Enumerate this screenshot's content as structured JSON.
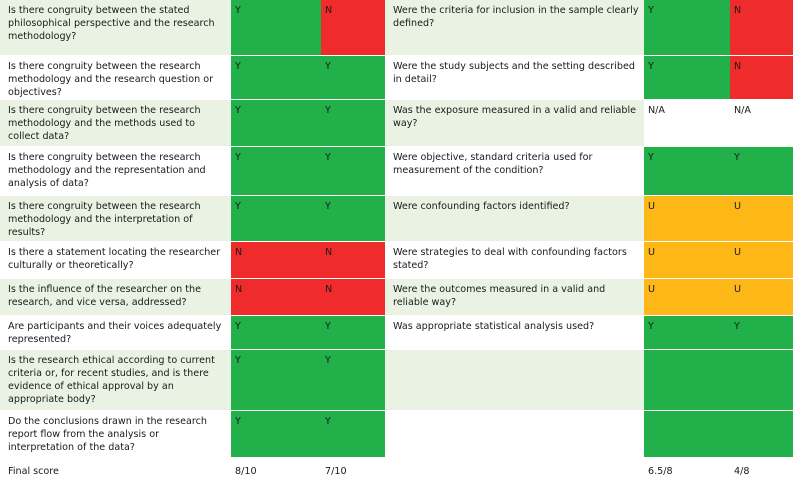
{
  "rows": [
    {
      "q1": "Is there congruity between the stated philosophical perspective and the research methodology?",
      "a": "Y",
      "b": "N",
      "q2": "Were the criteria for inclusion in the sample clearly defined?",
      "c": "Y",
      "d": "N"
    },
    {
      "q1": "Is there congruity between the research methodology and the research question or objectives?",
      "a": "Y",
      "b": "Y",
      "q2": "Were the study subjects and the setting described in detail?",
      "c": "Y",
      "d": "N"
    },
    {
      "q1": "Is there congruity between the research methodology and the methods used to collect data?",
      "a": "Y",
      "b": "Y",
      "q2": "Was the exposure measured in a valid and reliable way?",
      "c": "N/A",
      "d": "N/A"
    },
    {
      "q1": "Is there congruity between the research methodology and the representation and analysis of data?",
      "a": "Y",
      "b": "Y",
      "q2": "Were objective, standard criteria used for measurement of the condition?",
      "c": "Y",
      "d": "Y"
    },
    {
      "q1": "Is there congruity between the research methodology and the interpretation of results?",
      "a": "Y",
      "b": "Y",
      "q2": "Were confounding factors identified?",
      "c": "U",
      "d": "U"
    },
    {
      "q1": "Is there a statement locating the researcher culturally or theoretically?",
      "a": "N",
      "b": "N",
      "q2": "Were strategies to deal with confounding factors stated?",
      "c": "U",
      "d": "U"
    },
    {
      "q1": "Is the influence of the researcher on the research, and vice versa, addressed?",
      "a": "N",
      "b": "N",
      "q2": "Were the outcomes measured in a valid and reliable way?",
      "c": "U",
      "d": "U"
    },
    {
      "q1": "Are participants and their voices adequately represented?",
      "a": "Y",
      "b": "Y",
      "q2": "Was appropriate statistical analysis used?",
      "c": "Y",
      "d": "Y"
    },
    {
      "q1": "Is the research ethical according to current criteria or, for recent studies, and is there evidence of ethical approval by an appropriate body?",
      "a": "Y",
      "b": "Y",
      "q2": "",
      "c": "",
      "d": ""
    },
    {
      "q1": "Do the conclusions drawn in the research report flow from the analysis or interpretation of the data?",
      "a": "Y",
      "b": "Y",
      "q2": "",
      "c": "",
      "d": ""
    }
  ],
  "final": {
    "label": "Final score",
    "a": "8/10",
    "b": "7/10",
    "c": "6.5/8",
    "d": "4/8"
  },
  "colors": {
    "Y": "#22b04a",
    "N": "#ef2b2b",
    "U": "#fdb817",
    "stripe": "#eaf3e3"
  }
}
